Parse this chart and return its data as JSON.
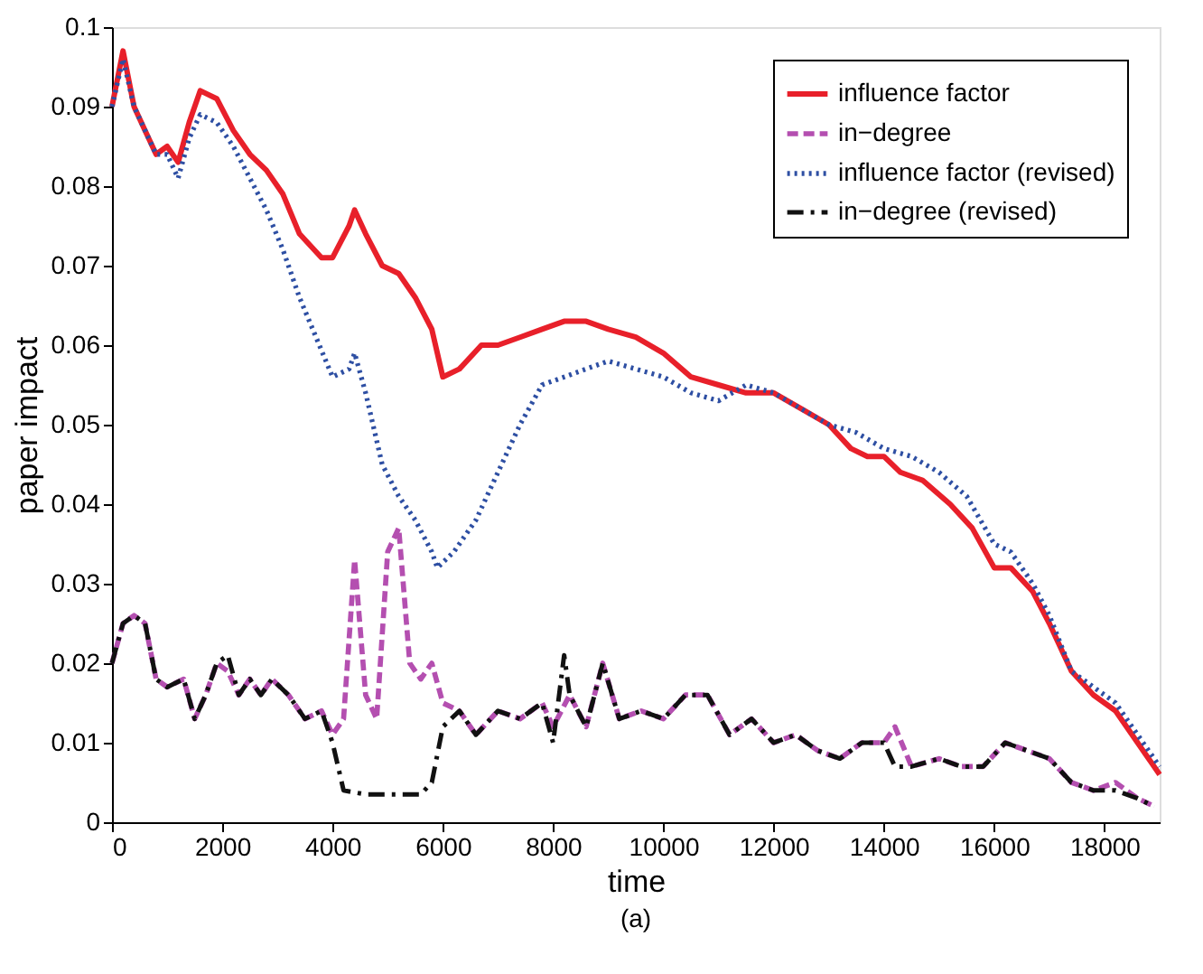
{
  "chart_data": {
    "type": "line",
    "title": "(a)",
    "xlabel": "time",
    "ylabel": "paper impact",
    "xlim": [
      0,
      19000
    ],
    "ylim": [
      0,
      0.1
    ],
    "xticks": [
      0,
      2000,
      4000,
      6000,
      8000,
      10000,
      12000,
      14000,
      16000,
      18000
    ],
    "yticks": [
      0,
      0.01,
      0.02,
      0.03,
      0.04,
      0.05,
      0.06,
      0.07,
      0.08,
      0.09,
      0.1
    ],
    "grid": false,
    "legend": "top right",
    "marker": "none",
    "series": [
      {
        "name": "influence factor",
        "color": "#e8202a",
        "line_style": "solid",
        "x": [
          0,
          200,
          400,
          600,
          800,
          1000,
          1200,
          1400,
          1600,
          1900,
          2200,
          2500,
          2800,
          3100,
          3400,
          3800,
          4000,
          4300,
          4400,
          4600,
          4900,
          5200,
          5500,
          5800,
          6000,
          6300,
          6700,
          7000,
          7400,
          7800,
          8200,
          8600,
          9000,
          9500,
          10000,
          10500,
          11000,
          11500,
          12000,
          12500,
          13000,
          13400,
          13700,
          14000,
          14300,
          14700,
          15200,
          15600,
          16000,
          16300,
          16700,
          17000,
          17400,
          17800,
          18200,
          18600,
          19000
        ],
        "values": [
          0.09,
          0.097,
          0.09,
          0.087,
          0.084,
          0.085,
          0.083,
          0.088,
          0.092,
          0.091,
          0.087,
          0.084,
          0.082,
          0.079,
          0.074,
          0.071,
          0.071,
          0.075,
          0.077,
          0.074,
          0.07,
          0.069,
          0.066,
          0.062,
          0.056,
          0.057,
          0.06,
          0.06,
          0.061,
          0.062,
          0.063,
          0.063,
          0.062,
          0.061,
          0.059,
          0.056,
          0.055,
          0.054,
          0.054,
          0.052,
          0.05,
          0.047,
          0.046,
          0.046,
          0.044,
          0.043,
          0.04,
          0.037,
          0.032,
          0.032,
          0.029,
          0.025,
          0.019,
          0.016,
          0.014,
          0.01,
          0.006
        ]
      },
      {
        "name": "in−degree",
        "color": "#b44fb0",
        "line_style": "dashed",
        "x": [
          0,
          200,
          400,
          600,
          800,
          1000,
          1300,
          1500,
          1700,
          1900,
          2100,
          2300,
          2500,
          2700,
          2900,
          3200,
          3500,
          3800,
          4000,
          4200,
          4400,
          4600,
          4800,
          5000,
          5200,
          5400,
          5600,
          5800,
          6000,
          6300,
          6600,
          7000,
          7400,
          7800,
          8000,
          8300,
          8600,
          8900,
          9200,
          9600,
          10000,
          10400,
          10800,
          11200,
          11600,
          12000,
          12400,
          12800,
          13200,
          13600,
          14000,
          14200,
          14500,
          15000,
          15400,
          15800,
          16200,
          16600,
          17000,
          17400,
          17800,
          18200,
          18600,
          18900
        ],
        "values": [
          0.02,
          0.025,
          0.026,
          0.025,
          0.018,
          0.017,
          0.018,
          0.013,
          0.016,
          0.02,
          0.019,
          0.016,
          0.018,
          0.016,
          0.018,
          0.016,
          0.013,
          0.014,
          0.011,
          0.013,
          0.033,
          0.016,
          0.013,
          0.034,
          0.037,
          0.02,
          0.018,
          0.02,
          0.015,
          0.014,
          0.011,
          0.014,
          0.013,
          0.015,
          0.012,
          0.016,
          0.012,
          0.02,
          0.013,
          0.014,
          0.013,
          0.016,
          0.016,
          0.011,
          0.013,
          0.01,
          0.011,
          0.009,
          0.008,
          0.01,
          0.01,
          0.012,
          0.007,
          0.008,
          0.007,
          0.007,
          0.01,
          0.009,
          0.008,
          0.005,
          0.004,
          0.005,
          0.003,
          0.002
        ]
      },
      {
        "name": "influence factor (revised)",
        "color": "#2e4fa3",
        "line_style": "dotted",
        "x": [
          0,
          200,
          400,
          600,
          800,
          1000,
          1200,
          1400,
          1600,
          1900,
          2200,
          2500,
          2800,
          3100,
          3400,
          3700,
          4000,
          4300,
          4400,
          4600,
          4900,
          5200,
          5500,
          5800,
          5900,
          6200,
          6600,
          7000,
          7400,
          7800,
          8200,
          8600,
          9000,
          9500,
          10000,
          10500,
          11000,
          11500,
          12000,
          12500,
          13000,
          13500,
          14000,
          14500,
          15000,
          15500,
          16000,
          16300,
          16700,
          17000,
          17400,
          17800,
          18200,
          18600,
          19000
        ],
        "values": [
          0.09,
          0.096,
          0.09,
          0.087,
          0.084,
          0.084,
          0.081,
          0.086,
          0.089,
          0.088,
          0.085,
          0.081,
          0.077,
          0.072,
          0.066,
          0.061,
          0.056,
          0.057,
          0.059,
          0.054,
          0.045,
          0.041,
          0.038,
          0.034,
          0.032,
          0.034,
          0.038,
          0.044,
          0.05,
          0.055,
          0.056,
          0.057,
          0.058,
          0.057,
          0.056,
          0.054,
          0.053,
          0.055,
          0.054,
          0.052,
          0.05,
          0.049,
          0.047,
          0.046,
          0.044,
          0.041,
          0.035,
          0.034,
          0.03,
          0.026,
          0.019,
          0.017,
          0.015,
          0.011,
          0.007
        ]
      },
      {
        "name": "in−degree (revised)",
        "color": "#111111",
        "line_style": "dashdot",
        "x": [
          0,
          200,
          400,
          600,
          800,
          1000,
          1300,
          1500,
          1700,
          1900,
          2100,
          2300,
          2500,
          2700,
          2900,
          3200,
          3500,
          3800,
          4000,
          4200,
          4600,
          5000,
          5600,
          5800,
          6000,
          6300,
          6600,
          7000,
          7400,
          7800,
          8000,
          8200,
          8300,
          8600,
          8900,
          9200,
          9600,
          10000,
          10400,
          10800,
          11200,
          11600,
          12000,
          12400,
          12800,
          13200,
          13600,
          14000,
          14200,
          14500,
          15000,
          15400,
          15800,
          16200,
          16600,
          17000,
          17400,
          17800,
          18200,
          18600,
          18900
        ],
        "values": [
          0.02,
          0.025,
          0.026,
          0.025,
          0.018,
          0.017,
          0.018,
          0.013,
          0.016,
          0.02,
          0.021,
          0.016,
          0.018,
          0.016,
          0.018,
          0.016,
          0.013,
          0.014,
          0.01,
          0.004,
          0.0035,
          0.0035,
          0.0035,
          0.005,
          0.012,
          0.014,
          0.011,
          0.014,
          0.013,
          0.015,
          0.01,
          0.021,
          0.016,
          0.012,
          0.02,
          0.013,
          0.014,
          0.013,
          0.016,
          0.016,
          0.011,
          0.013,
          0.01,
          0.011,
          0.009,
          0.008,
          0.01,
          0.01,
          0.007,
          0.007,
          0.008,
          0.007,
          0.007,
          0.01,
          0.009,
          0.008,
          0.005,
          0.004,
          0.004,
          0.003,
          0.002
        ]
      }
    ]
  }
}
